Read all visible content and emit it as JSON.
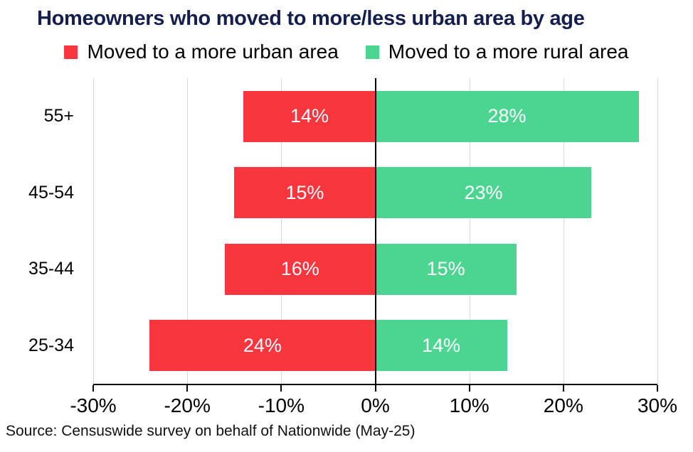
{
  "title": "Homeowners who moved to more/less urban area by age",
  "source": "Source: Censuswide survey on behalf of Nationwide (May-25)",
  "legend": [
    {
      "label": "Moved to a more urban area",
      "color": "#F9353E",
      "icon": "legend-swatch-urban-icon"
    },
    {
      "label": "Moved to a more rural area",
      "color": "#4BD591",
      "icon": "legend-swatch-rural-icon"
    }
  ],
  "colors": {
    "title": "#151F4E",
    "urban_red": "#F9353E",
    "rural_green": "#4BD591",
    "gridline": "#D9D9D9",
    "axis": "#000000",
    "bar_label": "#FFFFFF"
  },
  "chart_data": {
    "type": "bar",
    "orientation": "horizontal-diverging",
    "title": "Homeowners who moved to more/less urban area by age",
    "categories": [
      "55+",
      "45-54",
      "35-44",
      "25-34"
    ],
    "series": [
      {
        "name": "Moved to a more urban area",
        "direction": "left",
        "color": "#F9353E",
        "values": [
          14,
          15,
          16,
          24
        ],
        "labels": [
          "14%",
          "15%",
          "16%",
          "24%"
        ]
      },
      {
        "name": "Moved to a more rural area",
        "direction": "right",
        "color": "#4BD591",
        "values": [
          28,
          23,
          15,
          14
        ],
        "labels": [
          "28%",
          "23%",
          "15%",
          "14%"
        ]
      }
    ],
    "x_ticks": [
      "-30%",
      "-20%",
      "-10%",
      "0%",
      "10%",
      "20%",
      "30%"
    ],
    "x_tick_values": [
      -30,
      -20,
      -10,
      0,
      10,
      20,
      30
    ],
    "x_range": [
      -30,
      30
    ],
    "grid": true,
    "zero_line": true,
    "legend_position": "top",
    "xlabel": "",
    "ylabel": ""
  }
}
